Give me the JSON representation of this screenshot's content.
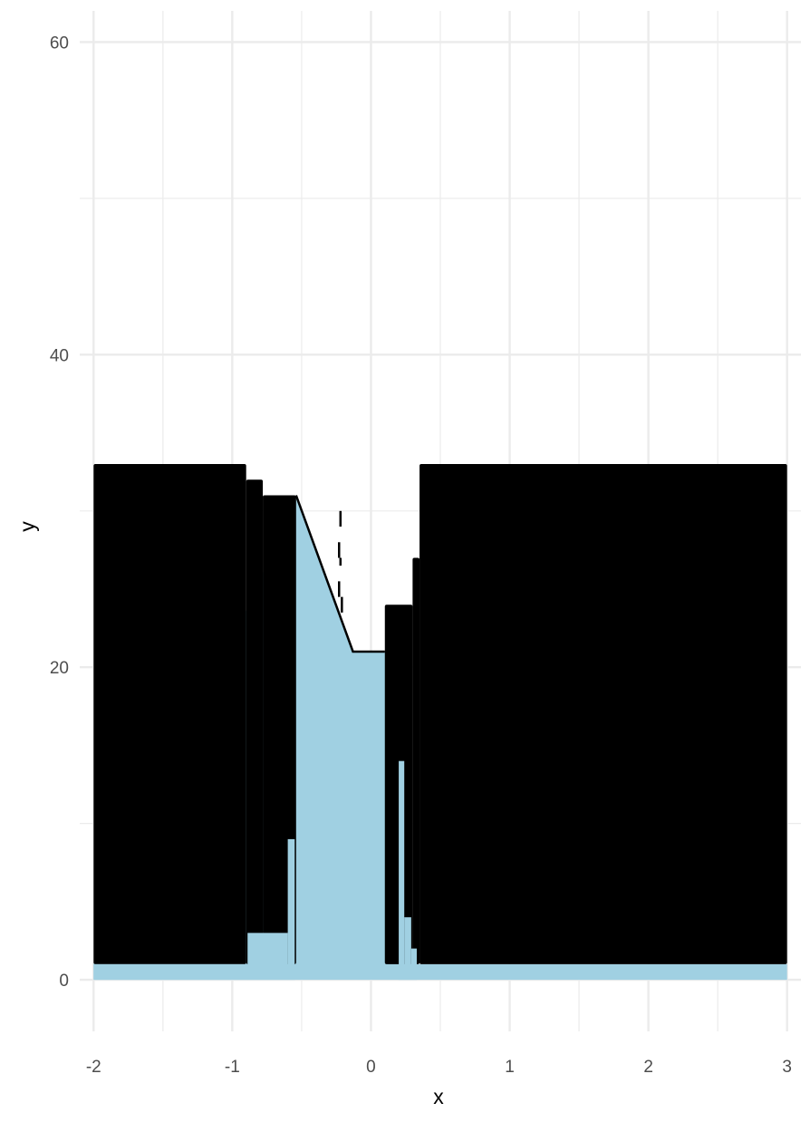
{
  "chart_data": {
    "type": "area",
    "xlabel": "x",
    "ylabel": "y",
    "xlim": [
      -2.1,
      3.1
    ],
    "ylim": [
      -3.3,
      62
    ],
    "grid": true,
    "x_ticks": [
      -2,
      -1,
      0,
      1,
      2,
      3
    ],
    "y_ticks": [
      0,
      20,
      40,
      60
    ],
    "x_tick_labels": [
      "-2",
      "-1",
      "0",
      "1",
      "2",
      "3"
    ],
    "y_tick_labels": [
      "0",
      "20",
      "40",
      "60"
    ],
    "x_minor_ticks": [
      -1.5,
      -0.5,
      0.5,
      1.5,
      2.5
    ],
    "y_minor_ticks": [
      10,
      30,
      50
    ],
    "colors": {
      "area_fill": "#a0d0e2",
      "bars": "#000000",
      "line": "#000000",
      "grid": "#ebebeb"
    },
    "area": {
      "name": "",
      "baseline": 0,
      "x": [
        -2,
        -0.54,
        -0.13,
        0.2,
        0.22,
        0.25,
        0.29,
        0.33,
        3
      ],
      "top": [
        1,
        31,
        21,
        21,
        14,
        4,
        2,
        1,
        1
      ]
    },
    "series": [
      {
        "name": "",
        "type": "step-bar",
        "y_floor": 1,
        "bars": [
          {
            "x0": -2.0,
            "x1": -0.9,
            "top": 33
          },
          {
            "x0": -0.9,
            "x1": -0.78,
            "top": 32
          },
          {
            "x0": -0.78,
            "x1": -0.54,
            "top": 31
          },
          {
            "x0": 0.1,
            "x1": 0.3,
            "top": 24
          },
          {
            "x0": 0.3,
            "x1": 0.35,
            "top": 27
          },
          {
            "x0": 0.35,
            "x1": 3.0,
            "top": 33
          }
        ],
        "cutouts": [
          {
            "x0": -2.0,
            "x1": -0.89,
            "top": 1
          },
          {
            "x0": -0.89,
            "x1": -0.6,
            "top": 3
          },
          {
            "x0": -0.6,
            "x1": -0.55,
            "top": 9
          },
          {
            "x0": 0.2,
            "x1": 0.24,
            "top": 14
          },
          {
            "x0": 0.24,
            "x1": 0.29,
            "top": 4
          },
          {
            "x0": 0.29,
            "x1": 0.33,
            "top": 2
          }
        ]
      },
      {
        "name": "",
        "type": "line",
        "x": [
          -0.54,
          -0.13,
          0.1
        ],
        "y": [
          31,
          21,
          21
        ]
      },
      {
        "name": "",
        "type": "dashed-line",
        "segments": [
          {
            "x": [
              -0.22,
              -0.22
            ],
            "y": [
              30,
              29
            ]
          },
          {
            "x": [
              -0.23,
              -0.23
            ],
            "y": [
              28,
              27
            ]
          },
          {
            "x": [
              -0.22,
              -0.22
            ],
            "y": [
              27,
              26.5
            ]
          },
          {
            "x": [
              -0.23,
              -0.23
            ],
            "y": [
              25.5,
              24.5
            ]
          },
          {
            "x": [
              -0.21,
              -0.21
            ],
            "y": [
              24.5,
              23.5
            ]
          }
        ]
      }
    ]
  }
}
